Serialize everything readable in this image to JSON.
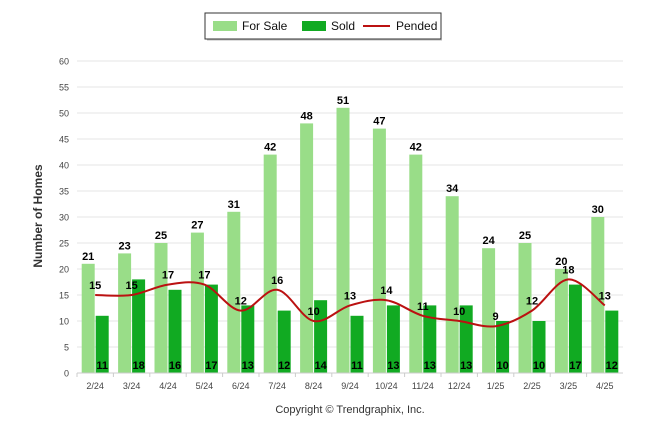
{
  "chart_data": {
    "type": "bar",
    "title": "",
    "xlabel": "",
    "ylabel": "Number of Homes",
    "ylim": [
      0,
      60
    ],
    "ytick_step": 5,
    "grid": true,
    "legend_position": "top-center",
    "categories": [
      "2/24",
      "3/24",
      "4/24",
      "5/24",
      "6/24",
      "7/24",
      "8/24",
      "9/24",
      "10/24",
      "11/24",
      "12/24",
      "1/25",
      "2/25",
      "3/25",
      "4/25"
    ],
    "series": [
      {
        "name": "For Sale",
        "kind": "bar",
        "color": "#99dd88",
        "values": [
          21,
          23,
          25,
          27,
          31,
          42,
          48,
          51,
          47,
          42,
          34,
          24,
          25,
          20,
          30
        ]
      },
      {
        "name": "Sold",
        "kind": "bar",
        "color": "#11aa22",
        "values": [
          11,
          18,
          16,
          17,
          13,
          12,
          14,
          11,
          13,
          13,
          13,
          10,
          10,
          17,
          12
        ]
      },
      {
        "name": "Pended",
        "kind": "line",
        "color": "#bb1111",
        "values": [
          15,
          15,
          17,
          17,
          12,
          16,
          10,
          13,
          14,
          11,
          10,
          9,
          12,
          18,
          13
        ]
      }
    ],
    "footer": "Copyright © Trendgraphix, Inc."
  }
}
